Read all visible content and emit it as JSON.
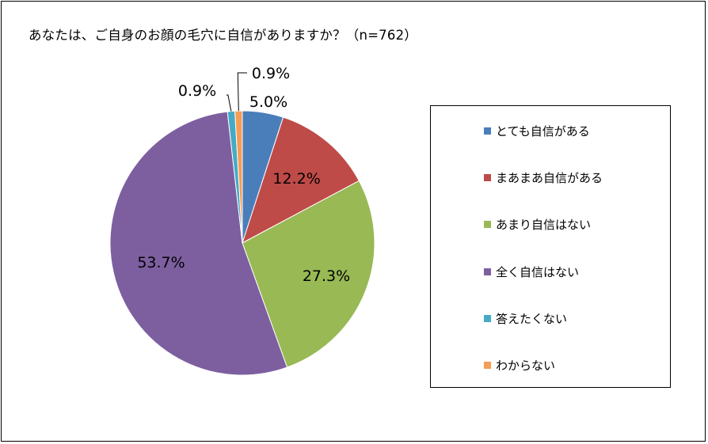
{
  "chart_data": {
    "type": "pie",
    "title": "あなたは、ご自身のお顔の毛穴に自信がありますか？（n=762）",
    "categories": [
      "とても自信がある",
      "まあまあ自信がある",
      "あまり自信はない",
      "全く自信はない",
      "答えたくない",
      "わからない"
    ],
    "values": [
      5.0,
      12.2,
      27.3,
      53.7,
      0.9,
      0.9
    ],
    "data_labels": [
      "5.0%",
      "12.2%",
      "27.3%",
      "53.7%",
      "0.9%",
      "0.9%"
    ],
    "colors": [
      "#4a7ebb",
      "#be4b48",
      "#98b954",
      "#7d5fa0",
      "#46aac5",
      "#f59d56"
    ],
    "legend_position": "right"
  }
}
